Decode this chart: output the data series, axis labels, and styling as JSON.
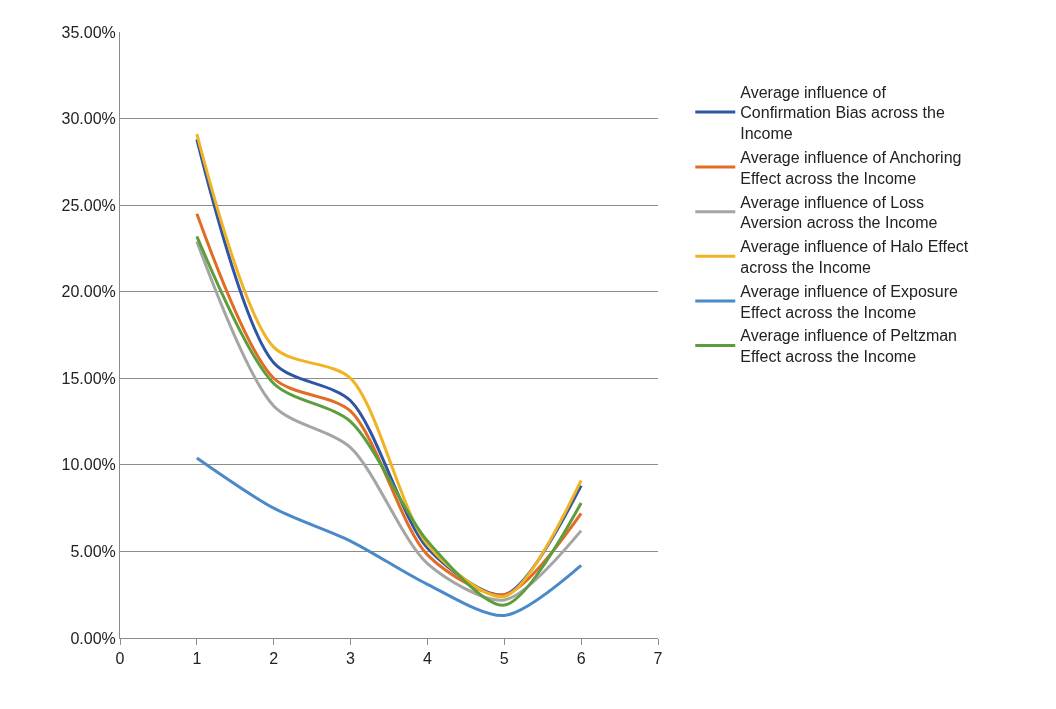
{
  "chart_data": {
    "type": "line",
    "x": [
      1,
      2,
      3,
      4,
      5,
      6
    ],
    "series": [
      {
        "name": "Average influence of Confirmation Bias across the Income",
        "color": "#2f55a4",
        "values": [
          28.8,
          15.9,
          13.7,
          5.2,
          2.5,
          8.8
        ]
      },
      {
        "name": "Average influence of Anchoring Effect across the Income",
        "color": "#e36c25",
        "values": [
          24.5,
          15.0,
          13.1,
          4.8,
          2.5,
          7.2
        ]
      },
      {
        "name": "Average influence of Loss Aversion across the Income",
        "color": "#a5a5a5",
        "values": [
          22.9,
          13.4,
          11.0,
          4.3,
          2.2,
          6.2
        ]
      },
      {
        "name": "Average influence of Halo Effect across the Income",
        "color": "#f0b323",
        "values": [
          29.1,
          16.8,
          15.0,
          5.4,
          2.4,
          9.1
        ]
      },
      {
        "name": "Average influence of Exposure Effect across the Income",
        "color": "#4a8ac9",
        "values": [
          10.4,
          7.5,
          5.6,
          3.1,
          1.3,
          4.2
        ]
      },
      {
        "name": "Average influence of Peltzman Effect across the Income",
        "color": "#5d9e3c",
        "values": [
          23.2,
          14.7,
          12.5,
          5.6,
          1.9,
          7.8
        ]
      }
    ],
    "xlim": [
      0,
      7
    ],
    "xticks": [
      0,
      1,
      2,
      3,
      4,
      5,
      6,
      7
    ],
    "ylim": [
      0,
      35
    ],
    "yticks": [
      {
        "value": 0,
        "label": "0.00%"
      },
      {
        "value": 5,
        "label": "5.00%"
      },
      {
        "value": 10,
        "label": "10.00%"
      },
      {
        "value": 15,
        "label": "15.00%"
      },
      {
        "value": 20,
        "label": "20.00%"
      },
      {
        "value": 25,
        "label": "25.00%"
      },
      {
        "value": 30,
        "label": "30.00%"
      },
      {
        "value": 35,
        "label": "35.00%"
      }
    ],
    "grid": "y",
    "legend": "right",
    "marker": "none",
    "line_style": "solid"
  }
}
